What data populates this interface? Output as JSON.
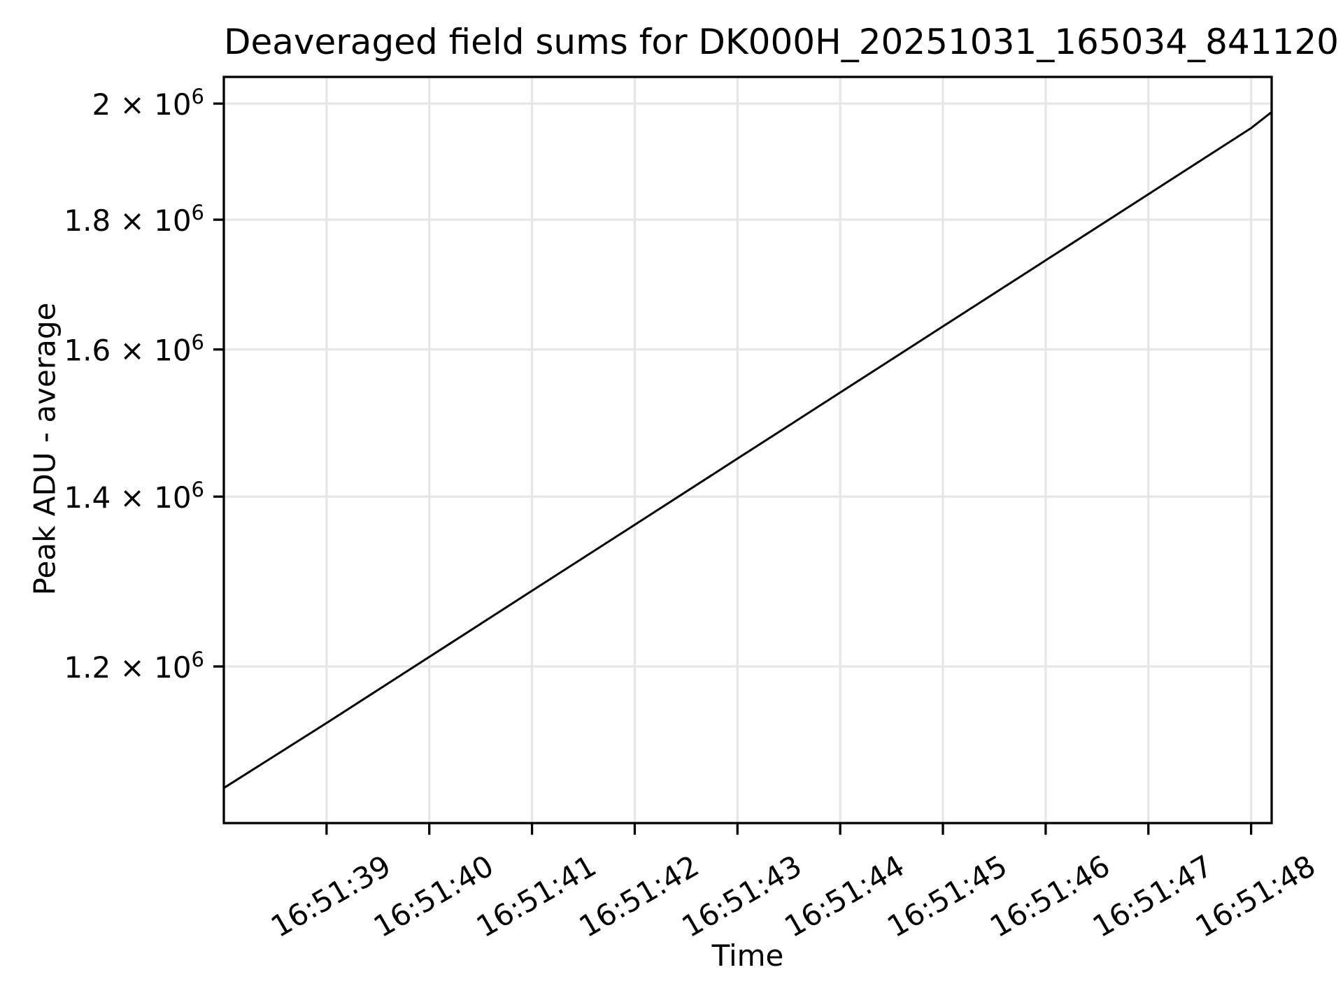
{
  "chart_data": {
    "type": "line",
    "title": "Deaveraged field sums for DK000H_20251031_165034_841120",
    "xlabel": "Time",
    "ylabel": "Peak ADU - average",
    "y_scale": "log",
    "grid": true,
    "legend_position": "none",
    "background_color": "#ffffff",
    "line_color": "#000000",
    "grid_color": "#e6e6e6",
    "spine_color": "#000000",
    "xlim": [
      "16:51:38.0",
      "16:51:48.2"
    ],
    "ylim": [
      1041000,
      2049000
    ],
    "x_ticks": [
      "16:51:39",
      "16:51:40",
      "16:51:41",
      "16:51:42",
      "16:51:43",
      "16:51:44",
      "16:51:45",
      "16:51:46",
      "16:51:47",
      "16:51:48"
    ],
    "x_tick_rotation_deg": 30,
    "y_ticks": [
      {
        "value": 1200000,
        "base": "1.2 × 10",
        "exp": "6"
      },
      {
        "value": 1400000,
        "base": "1.4 × 10",
        "exp": "6"
      },
      {
        "value": 1600000,
        "base": "1.6 × 10",
        "exp": "6"
      },
      {
        "value": 1800000,
        "base": "1.8 × 10",
        "exp": "6"
      },
      {
        "value": 2000000,
        "base": "2 × 10",
        "exp": "6"
      }
    ],
    "points": [
      [
        "16:51:38.0",
        1074700
      ],
      [
        "16:51:39",
        1140000
      ],
      [
        "16:51:40",
        1210400
      ],
      [
        "16:51:41",
        1285300
      ],
      [
        "16:51:42",
        1364700
      ],
      [
        "16:51:43",
        1449100
      ],
      [
        "16:51:44",
        1538700
      ],
      [
        "16:51:45",
        1633800
      ],
      [
        "16:51:46",
        1734800
      ],
      [
        "16:51:47",
        1842100
      ],
      [
        "16:51:48",
        1956000
      ],
      [
        "16:51:48.2",
        1984700
      ]
    ]
  }
}
